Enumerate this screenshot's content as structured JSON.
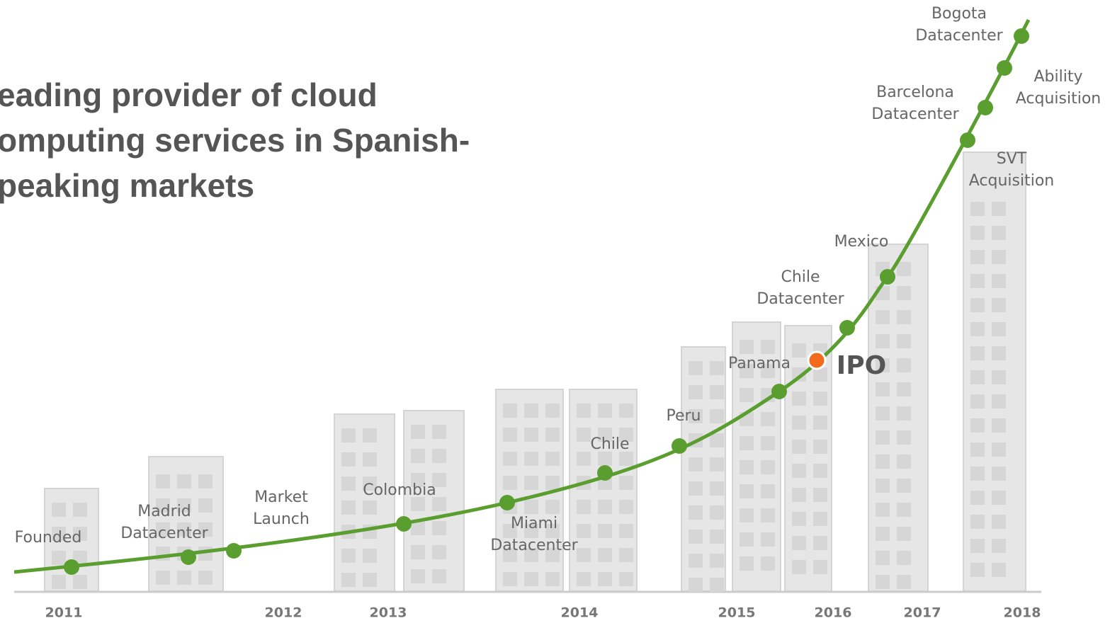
{
  "headline": [
    "eading provider of cloud",
    "omputing services in Spanish-",
    "peaking markets"
  ],
  "milestones": [
    {
      "label": [
        "Founded"
      ]
    },
    {
      "label": [
        "Madrid",
        "Datacenter"
      ]
    },
    {
      "label": [
        "Market",
        "Launch"
      ]
    },
    {
      "label": [
        "Colombia"
      ]
    },
    {
      "label": [
        "Miami",
        "Datacenter"
      ]
    },
    {
      "label": [
        "Chile"
      ]
    },
    {
      "label": [
        "Peru"
      ]
    },
    {
      "label": [
        "Panama"
      ]
    },
    {
      "label": [
        "IPO"
      ]
    },
    {
      "label": [
        "Chile",
        "Datacenter"
      ]
    },
    {
      "label": [
        "Mexico"
      ]
    },
    {
      "label": [
        "SVT",
        "Acquisition"
      ]
    },
    {
      "label": [
        "Barcelona",
        "Datacenter"
      ]
    },
    {
      "label": [
        "Ability",
        "Acquisition"
      ]
    },
    {
      "label": [
        "Bogota",
        "Datacenter"
      ]
    }
  ],
  "years": [
    "2011",
    "2012",
    "2013",
    "2014",
    "2015",
    "2016",
    "2017",
    "2018"
  ]
}
